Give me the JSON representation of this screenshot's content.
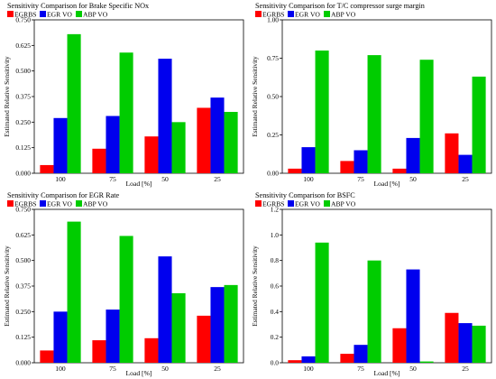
{
  "colors": {
    "EGRBS": "#ff0000",
    "EGR VO": "#0000ee",
    "ABP VO": "#00cc00"
  },
  "chart_data": [
    {
      "type": "bar",
      "title": "Sensitivity Comparison for Brake Specific NOx",
      "xlabel": "Load [%]",
      "ylabel": "Estimated Relative Sensitivity",
      "categories": [
        "100",
        "75",
        "50",
        "25"
      ],
      "ylim": [
        0,
        0.75
      ],
      "yticks": [
        "0.000",
        "0.125",
        "0.250",
        "0.375",
        "0.500",
        "0.625",
        "0.750"
      ],
      "legend": [
        "EGRBS",
        "EGR  VO",
        "ABP VO"
      ],
      "series": [
        {
          "name": "EGRBS",
          "values": [
            0.04,
            0.12,
            0.18,
            0.32
          ]
        },
        {
          "name": "EGR  VO",
          "values": [
            0.27,
            0.28,
            0.56,
            0.37
          ]
        },
        {
          "name": "ABP VO",
          "values": [
            0.68,
            0.59,
            0.25,
            0.3
          ]
        }
      ]
    },
    {
      "type": "bar",
      "title": "Sensitivity Comparison for T/C compressor surge margin",
      "xlabel": "Load [%]",
      "ylabel": "Estimated Relative Sensitivity",
      "categories": [
        "100",
        "75",
        "50",
        "25"
      ],
      "ylim": [
        0,
        1.0
      ],
      "yticks": [
        "0.00",
        "0.25",
        "0.50",
        "0.75",
        "1.00"
      ],
      "legend": [
        "EGRBS",
        "EGR  VO",
        "ABP VO"
      ],
      "series": [
        {
          "name": "EGRBS",
          "values": [
            0.03,
            0.08,
            0.03,
            0.26
          ]
        },
        {
          "name": "EGR  VO",
          "values": [
            0.17,
            0.15,
            0.23,
            0.12
          ]
        },
        {
          "name": "ABP VO",
          "values": [
            0.8,
            0.77,
            0.74,
            0.63
          ]
        }
      ]
    },
    {
      "type": "bar",
      "title": "Sensitivity Comparison for EGR Rate",
      "xlabel": "Load [%]",
      "ylabel": "Estimated Relative Sensitivity",
      "categories": [
        "100",
        "75",
        "50",
        "25"
      ],
      "ylim": [
        0,
        0.75
      ],
      "yticks": [
        "0.000",
        "0.125",
        "0.250",
        "0.375",
        "0.500",
        "0.625",
        "0.750"
      ],
      "legend": [
        "EGRBS",
        "EGR  VO",
        "ABP VO"
      ],
      "series": [
        {
          "name": "EGRBS",
          "values": [
            0.06,
            0.11,
            0.12,
            0.23
          ]
        },
        {
          "name": "EGR  VO",
          "values": [
            0.25,
            0.26,
            0.52,
            0.37
          ]
        },
        {
          "name": "ABP VO",
          "values": [
            0.69,
            0.62,
            0.34,
            0.38
          ]
        }
      ]
    },
    {
      "type": "bar",
      "title": "Sensitivity Comparison for BSFC",
      "xlabel": "Load [%]",
      "ylabel": "Estimated Relative Sensitivity",
      "categories": [
        "100",
        "75",
        "50",
        "25"
      ],
      "ylim": [
        0,
        1.2
      ],
      "yticks": [
        "0.0",
        "0.2",
        "0.4",
        "0.6",
        "0.8",
        "1.0",
        "1.2"
      ],
      "legend": [
        "EGRBS",
        "EGR  VO",
        "ABP VO"
      ],
      "series": [
        {
          "name": "EGRBS",
          "values": [
            0.02,
            0.07,
            0.27,
            0.39
          ]
        },
        {
          "name": "EGR  VO",
          "values": [
            0.05,
            0.14,
            0.73,
            0.31
          ]
        },
        {
          "name": "ABP VO",
          "values": [
            0.94,
            0.8,
            0.01,
            0.29
          ]
        }
      ]
    }
  ]
}
